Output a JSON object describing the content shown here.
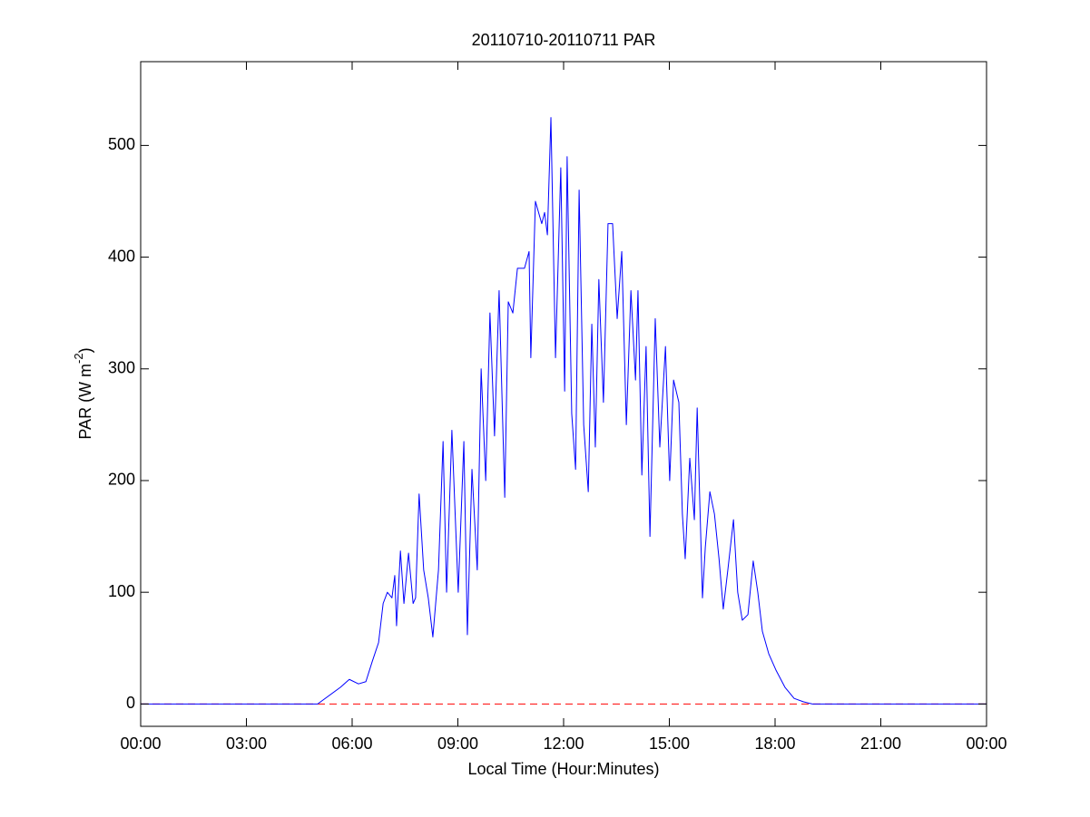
{
  "chart_data": {
    "type": "line",
    "title": "20110710-20110711 PAR",
    "x_label": "Local Time (Hour:Minutes)",
    "y_label": {
      "text": "PAR (W m",
      "superscript": "-2",
      "suffix": ")"
    },
    "x": [
      0,
      5.02,
      5.67,
      5.92,
      6.18,
      6.39,
      6.57,
      6.75,
      6.88,
      7.0,
      7.13,
      7.21,
      7.26,
      7.37,
      7.47,
      7.6,
      7.73,
      7.8,
      7.9,
      8.03,
      8.16,
      8.29,
      8.45,
      8.58,
      8.68,
      8.83,
      9.01,
      9.17,
      9.27,
      9.4,
      9.55,
      9.66,
      9.79,
      9.91,
      10.04,
      10.17,
      10.33,
      10.43,
      10.56,
      10.69,
      10.89,
      11.02,
      11.07,
      11.2,
      11.38,
      11.46,
      11.54,
      11.64,
      11.77,
      11.92,
      12.03,
      12.1,
      12.23,
      12.34,
      12.44,
      12.57,
      12.7,
      12.8,
      12.9,
      13.0,
      13.13,
      13.26,
      13.39,
      13.52,
      13.65,
      13.78,
      13.91,
      14.04,
      14.11,
      14.22,
      14.34,
      14.45,
      14.6,
      14.73,
      14.89,
      15.01,
      15.12,
      15.27,
      15.37,
      15.45,
      15.58,
      15.71,
      15.79,
      15.94,
      16.02,
      16.15,
      16.28,
      16.41,
      16.53,
      16.66,
      16.82,
      16.94,
      17.07,
      17.23,
      17.38,
      17.51,
      17.64,
      17.82,
      18.03,
      18.28,
      18.54,
      18.8,
      19.06,
      24
    ],
    "series": [
      {
        "color": "#0000ff",
        "values": [
          0,
          0,
          15,
          22,
          18,
          20,
          38,
          55,
          90,
          100,
          95,
          115,
          70,
          137,
          90,
          135,
          90,
          95,
          188,
          120,
          95,
          60,
          120,
          235,
          100,
          245,
          100,
          235,
          62,
          210,
          120,
          300,
          200,
          350,
          240,
          370,
          185,
          360,
          350,
          390,
          390,
          405,
          310,
          450,
          430,
          440,
          420,
          525,
          310,
          480,
          280,
          490,
          260,
          210,
          460,
          250,
          190,
          340,
          230,
          380,
          270,
          430,
          430,
          345,
          405,
          250,
          370,
          290,
          370,
          205,
          320,
          150,
          345,
          230,
          320,
          200,
          290,
          270,
          170,
          130,
          220,
          165,
          265,
          95,
          140,
          190,
          170,
          130,
          85,
          120,
          165,
          100,
          75,
          80,
          128,
          100,
          65,
          45,
          30,
          15,
          5,
          2,
          0,
          0
        ]
      }
    ],
    "hlines": [
      {
        "value": 0,
        "color": "#ff0000",
        "style": "dashed"
      }
    ],
    "xlim": [
      0,
      24
    ],
    "xticks": [
      {
        "value": 0,
        "label": "00:00"
      },
      {
        "value": 3,
        "label": "03:00"
      },
      {
        "value": 6,
        "label": "06:00"
      },
      {
        "value": 9,
        "label": "09:00"
      },
      {
        "value": 12,
        "label": "12:00"
      },
      {
        "value": 15,
        "label": "15:00"
      },
      {
        "value": 18,
        "label": "18:00"
      },
      {
        "value": 21,
        "label": "21:00"
      },
      {
        "value": 24,
        "label": "00:00"
      }
    ],
    "ylim": [
      -20,
      575
    ],
    "yticks": [
      0,
      100,
      200,
      300,
      400,
      500
    ],
    "grid": false
  }
}
